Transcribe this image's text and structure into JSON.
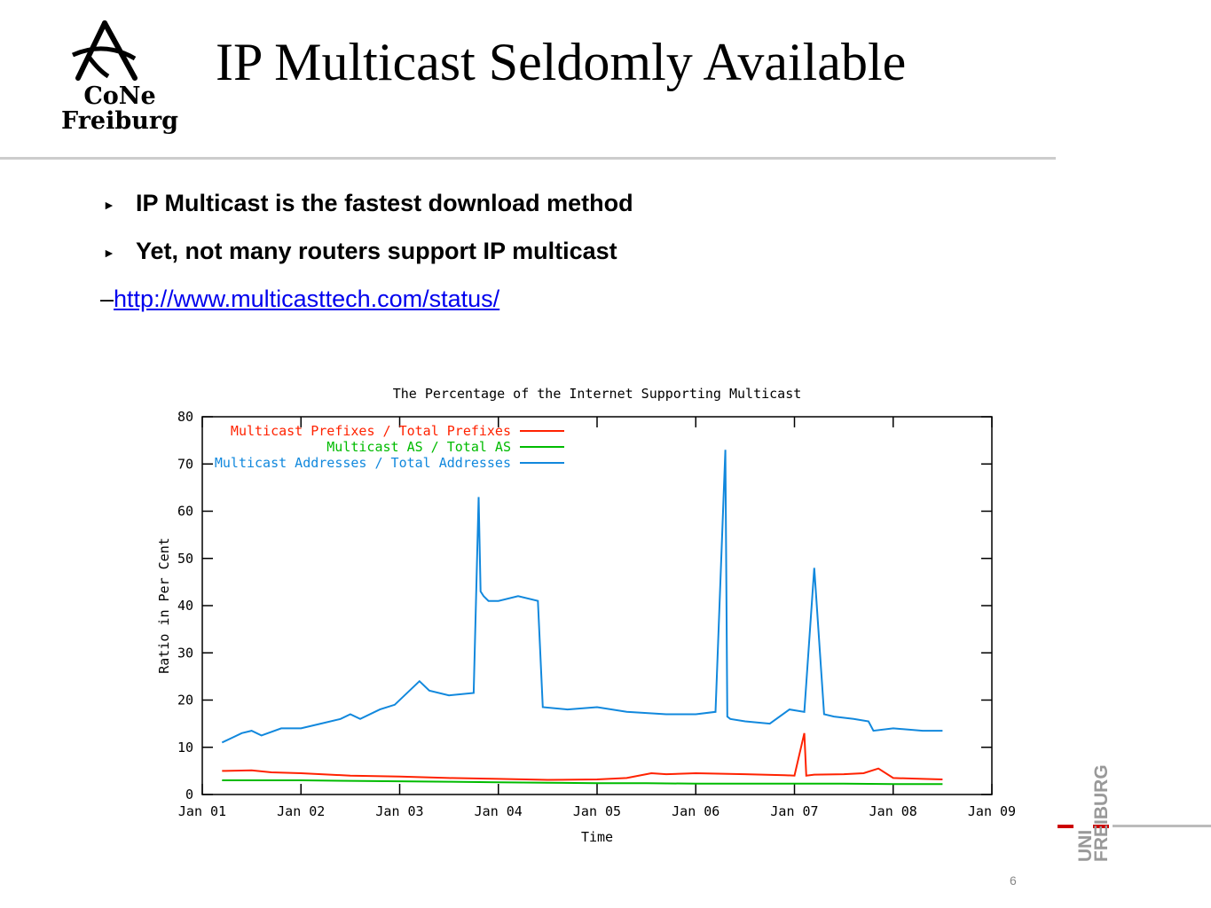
{
  "logo": {
    "line1": "CoNe",
    "line2": "Freiburg"
  },
  "title": "IP Multicast Seldomly Available",
  "bullets": [
    "IP Multicast is the fastest download method",
    "Yet, not many routers support IP multicast"
  ],
  "link": {
    "prefix": "–",
    "text": "http://www.multicasttech.com/status/"
  },
  "page_number": "6",
  "uni_logo": {
    "uni": "UNI",
    "freiburg": "FREIBURG"
  },
  "chart_data": {
    "type": "line",
    "title": "The Percentage of the Internet Supporting Multicast",
    "xlabel": "Time",
    "ylabel": "Ratio in Per Cent",
    "xlim": [
      2001.0,
      2009.0
    ],
    "ylim": [
      0,
      80
    ],
    "grid": false,
    "legend_position": "top-left",
    "x_ticks": [
      "Jan 01",
      "Jan 02",
      "Jan 03",
      "Jan 04",
      "Jan 05",
      "Jan 06",
      "Jan 07",
      "Jan 08",
      "Jan 09"
    ],
    "y_ticks": [
      0,
      10,
      20,
      30,
      40,
      50,
      60,
      70,
      80
    ],
    "series": [
      {
        "name": "Multicast Prefixes / Total Prefixes",
        "color": "#ff2200",
        "x": [
          2001.2,
          2001.5,
          2001.7,
          2002.0,
          2002.5,
          2003.0,
          2003.5,
          2004.0,
          2004.5,
          2005.0,
          2005.3,
          2005.55,
          2005.7,
          2006.0,
          2006.5,
          2006.9,
          2007.0,
          2007.1,
          2007.12,
          2007.2,
          2007.5,
          2007.7,
          2007.85,
          2008.0,
          2008.3,
          2008.5
        ],
        "values": [
          5.0,
          5.1,
          4.7,
          4.5,
          4.0,
          3.8,
          3.5,
          3.3,
          3.1,
          3.2,
          3.5,
          4.5,
          4.3,
          4.5,
          4.3,
          4.1,
          4.0,
          13.0,
          4.0,
          4.2,
          4.3,
          4.5,
          5.5,
          3.5,
          3.3,
          3.2
        ]
      },
      {
        "name": "Multicast AS / Total AS",
        "color": "#00bb00",
        "x": [
          2001.2,
          2001.5,
          2002.0,
          2002.5,
          2003.0,
          2003.5,
          2004.0,
          2004.5,
          2005.0,
          2005.5,
          2006.0,
          2006.5,
          2007.0,
          2007.5,
          2008.0,
          2008.5
        ],
        "values": [
          3.0,
          3.0,
          3.0,
          2.9,
          2.8,
          2.7,
          2.6,
          2.5,
          2.4,
          2.4,
          2.3,
          2.3,
          2.3,
          2.3,
          2.2,
          2.2
        ]
      },
      {
        "name": "Multicast Addresses / Total Addresses",
        "color": "#1188dd",
        "x": [
          2001.2,
          2001.3,
          2001.4,
          2001.5,
          2001.6,
          2001.8,
          2002.0,
          2002.2,
          2002.4,
          2002.5,
          2002.6,
          2002.8,
          2002.95,
          2003.2,
          2003.3,
          2003.5,
          2003.75,
          2003.8,
          2003.82,
          2003.85,
          2003.9,
          2004.0,
          2004.2,
          2004.4,
          2004.45,
          2004.7,
          2005.0,
          2005.3,
          2005.7,
          2006.0,
          2006.2,
          2006.3,
          2006.32,
          2006.35,
          2006.5,
          2006.75,
          2006.95,
          2007.1,
          2007.2,
          2007.3,
          2007.4,
          2007.6,
          2007.75,
          2007.8,
          2008.0,
          2008.3,
          2008.5
        ],
        "values": [
          11.0,
          12.0,
          13.0,
          13.5,
          12.5,
          14.0,
          14.0,
          15.0,
          16.0,
          17.0,
          16.0,
          18.0,
          19.0,
          24.0,
          22.0,
          21.0,
          21.5,
          63.0,
          43.0,
          42.0,
          41.0,
          41.0,
          42.0,
          41.0,
          18.5,
          18.0,
          18.5,
          17.5,
          17.0,
          17.0,
          17.5,
          73.0,
          16.5,
          16.0,
          15.5,
          15.0,
          18.0,
          17.5,
          48.0,
          17.0,
          16.5,
          16.0,
          15.5,
          13.5,
          14.0,
          13.5,
          13.5
        ]
      }
    ]
  }
}
